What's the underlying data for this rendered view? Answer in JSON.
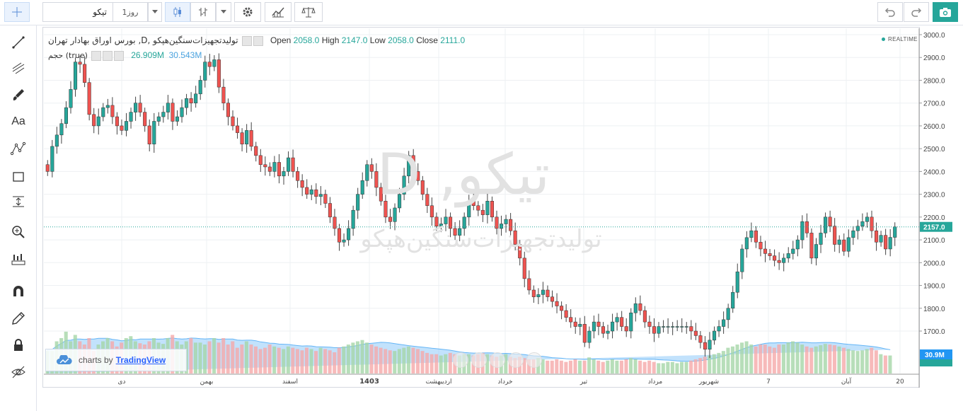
{
  "toolbar": {
    "crosshair_icon": "crosshair-icon",
    "symbol_value": "تیکو",
    "interval_label": "1روز",
    "chart_type_icon": "candles-icon",
    "bar_type_icon": "bars-icon",
    "settings_icon": "gear-icon",
    "indicators_icon": "indicators-icon",
    "compare_icon": "scale-icon",
    "undo_icon": "undo-icon",
    "redo_icon": "redo-icon",
    "screenshot_icon": "camera-icon"
  },
  "sidebar": {
    "tools": [
      "crosshair",
      "trend-line",
      "fib",
      "brush",
      "text",
      "pattern",
      "rectangle",
      "measure",
      "zoom",
      "ruler",
      "magnet",
      "pencil",
      "lock",
      "eye"
    ],
    "text_tool_label": "Aa"
  },
  "legend": {
    "symbol_title": "بورس اوراق بهادار تهران ,D, تولیدتجهیزات‌سنگین‌هپکو",
    "open_label": "Open",
    "open_value": "2058.0",
    "high_label": "High",
    "high_value": "2147.0",
    "low_label": "Low",
    "low_value": "2058.0",
    "close_label": "Close",
    "close_value": "2111.0",
    "volume_label": "حجم (true)",
    "volume_value1": "26.909M",
    "volume_value2": "30.543M",
    "realtime_label": "REALTIME"
  },
  "watermark": {
    "big": "تیکو, D",
    "small": "تولیدتجهیزات‌سنگین‌هپکو"
  },
  "badge": {
    "prefix": "charts by",
    "brand": "TradingView"
  },
  "colors": {
    "up": "#26a69a",
    "down": "#ef5350",
    "vol_up": "#a5d6a7",
    "vol_down": "#f5a9a9",
    "vol_ma": "#90caf9"
  },
  "chart_data": {
    "type": "candlestick",
    "y_axis": {
      "min": 1560,
      "max": 3000,
      "ticks": [
        3000.0,
        2900.0,
        2800.0,
        2700.0,
        2600.0,
        2500.0,
        2400.0,
        2300.0,
        2200.0,
        2100.0,
        2000.0,
        1900.0,
        1800.0,
        1700.0
      ]
    },
    "y_tick_labels": [
      "3000.0",
      "2900.0",
      "2800.0",
      "2700.0",
      "2600.0",
      "2500.0",
      "2400.0",
      "2300.0",
      "2200.0",
      "2100.0",
      "2000.0",
      "1900.0",
      "1800.0",
      "1700.0"
    ],
    "last_price": 2157.0,
    "last_price_label": "2157.0",
    "volume_label": "30.9M",
    "x_labels": [
      "دی",
      "بهمن",
      "اسفند",
      "1403",
      "اردیبهشت",
      "خرداد",
      "تیر",
      "مرداد",
      "شهریور",
      "7",
      "آبان",
      "20"
    ],
    "closes": [
      2400,
      2510,
      2560,
      2610,
      2680,
      2760,
      2880,
      2870,
      2790,
      2650,
      2600,
      2640,
      2680,
      2690,
      2640,
      2600,
      2580,
      2620,
      2660,
      2700,
      2660,
      2600,
      2520,
      2620,
      2640,
      2660,
      2700,
      2620,
      2640,
      2680,
      2720,
      2700,
      2740,
      2800,
      2880,
      2860,
      2890,
      2770,
      2700,
      2640,
      2600,
      2570,
      2520,
      2580,
      2510,
      2470,
      2430,
      2420,
      2400,
      2440,
      2380,
      2400,
      2460,
      2400,
      2360,
      2330,
      2300,
      2320,
      2290,
      2300,
      2260,
      2200,
      2150,
      2090,
      2100,
      2150,
      2230,
      2300,
      2360,
      2430,
      2400,
      2330,
      2270,
      2200,
      2180,
      2240,
      2300,
      2380,
      2470,
      2400,
      2360,
      2300,
      2250,
      2200,
      2160,
      2170,
      2200,
      2150,
      2120,
      2150,
      2200,
      2270,
      2250,
      2230,
      2210,
      2270,
      2200,
      2150,
      2170,
      2190,
      2140,
      2080,
      2020,
      1930,
      1880,
      1850,
      1860,
      1880,
      1850,
      1830,
      1810,
      1790,
      1760,
      1740,
      1720,
      1730,
      1650,
      1700,
      1740,
      1720,
      1690,
      1700,
      1740,
      1760,
      1720,
      1700,
      1780,
      1820,
      1790,
      1740,
      1720,
      1690,
      1720,
      1720,
      1720,
      1720,
      1720,
      1720,
      1720,
      1700,
      1680,
      1650,
      1620,
      1660,
      1700,
      1720,
      1750,
      1800,
      1870,
      1960,
      2060,
      2110,
      2140,
      2090,
      2060,
      2040,
      2030,
      2010,
      2000,
      2020,
      2040,
      2060,
      2100,
      2180,
      2130,
      2020,
      2080,
      2130,
      2200,
      2160,
      2080,
      2100,
      2050,
      2110,
      2140,
      2160,
      2180,
      2200,
      2140,
      2090,
      2120,
      2060,
      2111,
      2157
    ],
    "volumes": [
      0.35,
      0.35,
      0.5,
      0.55,
      0.65,
      0.5,
      0.6,
      0.5,
      0.45,
      0.55,
      0.35,
      0.45,
      0.5,
      0.55,
      0.5,
      0.42,
      0.48,
      0.55,
      0.58,
      0.5,
      0.47,
      0.45,
      0.5,
      0.55,
      0.48,
      0.46,
      0.55,
      0.6,
      0.5,
      0.45,
      0.5,
      0.55,
      0.48,
      0.48,
      0.45,
      0.5,
      0.55,
      0.48,
      0.55,
      0.45,
      0.5,
      0.4,
      0.45,
      0.5,
      0.45,
      0.42,
      0.38,
      0.4,
      0.45,
      0.42,
      0.4,
      0.38,
      0.42,
      0.4,
      0.38,
      0.36,
      0.4,
      0.38,
      0.35,
      0.4,
      0.38,
      0.36,
      0.33,
      0.4,
      0.42,
      0.45,
      0.48,
      0.5,
      0.52,
      0.48,
      0.45,
      0.42,
      0.4,
      0.38,
      0.36,
      0.35,
      0.38,
      0.4,
      0.42,
      0.4,
      0.38,
      0.35,
      0.32,
      0.3,
      0.3,
      0.28,
      0.3,
      0.32,
      0.3,
      0.28,
      0.3,
      0.3,
      0.28,
      0.3,
      0.32,
      0.3,
      0.28,
      0.26,
      0.28,
      0.3,
      0.26,
      0.24,
      0.26,
      0.24,
      0.22,
      0.22,
      0.24,
      0.22,
      0.2,
      0.2,
      0.22,
      0.2,
      0.18,
      0.2,
      0.22,
      0.2,
      0.2,
      0.25,
      0.22,
      0.2,
      0.18,
      0.2,
      0.22,
      0.2,
      0.2,
      0.22,
      0.24,
      0.22,
      0.2,
      0.18,
      0.2,
      0.18,
      0.16,
      0.16,
      0.18,
      0.18,
      0.16,
      0.18,
      0.18,
      0.2,
      0.22,
      0.24,
      0.26,
      0.28,
      0.3,
      0.32,
      0.35,
      0.4,
      0.42,
      0.45,
      0.48,
      0.5,
      0.45,
      0.42,
      0.45,
      0.45,
      0.42,
      0.4,
      0.45,
      0.45,
      0.48,
      0.5,
      0.48,
      0.45,
      0.42,
      0.4,
      0.42,
      0.44,
      0.46,
      0.45,
      0.44,
      0.42,
      0.4,
      0.38,
      0.36,
      0.35,
      0.36,
      0.38,
      0.4,
      0.36,
      0.3,
      0.28,
      0.28
    ]
  }
}
